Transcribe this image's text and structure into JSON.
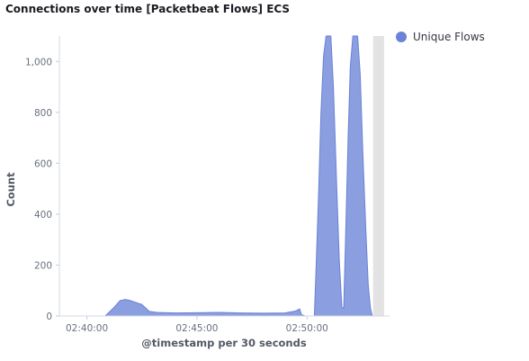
{
  "panel": {
    "title": "Connections over time [Packetbeat Flows] ECS"
  },
  "colors": {
    "series": "#8a9ee0",
    "series_stroke": "#6b82d6",
    "current_bucket": "#e3e3e3"
  },
  "chart_data": {
    "type": "area",
    "xlabel": "@timestamp per 30 seconds",
    "ylabel": "Count",
    "x_ticks": [
      "02:40:00",
      "02:45:00",
      "02:50:00"
    ],
    "y_ticks": [
      0,
      200,
      400,
      600,
      800,
      1000
    ],
    "y_tick_labels": [
      "0",
      "200",
      "400",
      "600",
      "800",
      "1,000"
    ],
    "xlim": [
      "02:38:45",
      "02:53:45"
    ],
    "ylim": [
      0,
      1100
    ],
    "legend_position": "top-right",
    "current_bucket": [
      "02:53:00",
      "02:53:30"
    ],
    "series": [
      {
        "name": "Unique Flows",
        "points": [
          [
            "02:40:50",
            0
          ],
          [
            "02:41:15",
            35
          ],
          [
            "02:41:30",
            60
          ],
          [
            "02:41:45",
            65
          ],
          [
            "02:42:00",
            60
          ],
          [
            "02:42:30",
            45
          ],
          [
            "02:42:50",
            18
          ],
          [
            "02:43:10",
            14
          ],
          [
            "02:44:00",
            12
          ],
          [
            "02:45:00",
            13
          ],
          [
            "02:46:00",
            14
          ],
          [
            "02:47:00",
            12
          ],
          [
            "02:48:00",
            11
          ],
          [
            "02:49:00",
            12
          ],
          [
            "02:49:30",
            20
          ],
          [
            "02:49:40",
            28
          ],
          [
            "02:49:45",
            5
          ],
          [
            "02:49:55",
            0
          ],
          [
            "02:50:20",
            0
          ],
          [
            "02:50:25",
            200
          ],
          [
            "02:50:32",
            500
          ],
          [
            "02:50:38",
            800
          ],
          [
            "02:50:45",
            1020
          ],
          [
            "02:50:52",
            1100
          ],
          [
            "02:51:05",
            1100
          ],
          [
            "02:51:12",
            900
          ],
          [
            "02:51:20",
            550
          ],
          [
            "02:51:28",
            220
          ],
          [
            "02:51:35",
            35
          ],
          [
            "02:51:40",
            30
          ],
          [
            "02:51:45",
            300
          ],
          [
            "02:51:52",
            700
          ],
          [
            "02:51:58",
            980
          ],
          [
            "02:52:05",
            1100
          ],
          [
            "02:52:18",
            1100
          ],
          [
            "02:52:25",
            950
          ],
          [
            "02:52:32",
            650
          ],
          [
            "02:52:40",
            350
          ],
          [
            "02:52:47",
            120
          ],
          [
            "02:52:53",
            30
          ],
          [
            "02:52:58",
            0
          ]
        ]
      }
    ]
  }
}
